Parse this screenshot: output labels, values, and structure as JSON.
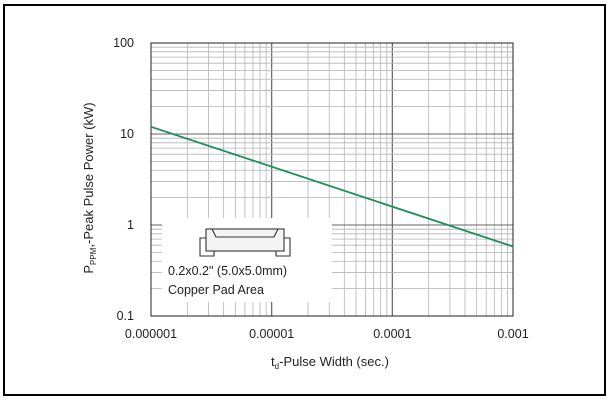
{
  "chart_data": {
    "type": "line",
    "title": "",
    "x_scale": "log",
    "y_scale": "log",
    "xlim": [
      1e-06,
      0.001
    ],
    "ylim": [
      0.1,
      100
    ],
    "grid": true,
    "x_tick_labels": [
      "0.000001",
      "0.00001",
      "0.0001",
      "0.001"
    ],
    "y_tick_labels": [
      "0.1",
      "1",
      "10",
      "100"
    ],
    "xlabel": {
      "main": "t",
      "sub": "d",
      "rest": "-Pulse Width (sec.)"
    },
    "ylabel": {
      "main": "P",
      "sub": "PPM",
      "rest": ",-Peak Pulse Power (kW)"
    },
    "series": [
      {
        "color": "#1e8f5a",
        "x": [
          1e-06,
          0.001
        ],
        "y": [
          12,
          0.58
        ]
      }
    ],
    "annotation": {
      "lines": [
        "0.2x0.2\" (5.0x5.0mm)",
        "Copper Pad Area"
      ],
      "icon": "smd-package-icon"
    }
  }
}
